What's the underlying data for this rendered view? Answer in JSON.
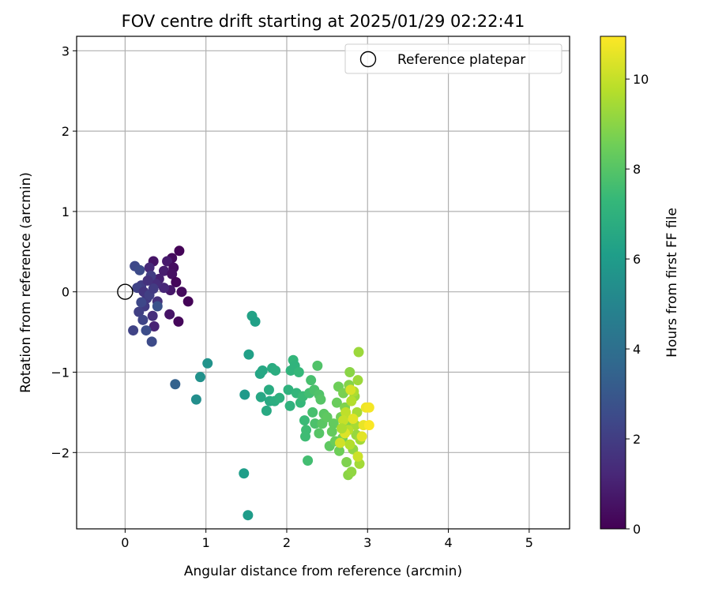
{
  "chart_data": {
    "type": "scatter",
    "title": "FOV centre drift starting at 2025/01/29 02:22:41",
    "xlabel": "Angular distance from reference (arcmin)",
    "ylabel": "Rotation from reference (arcmin)",
    "xlim": [
      -0.6,
      5.5
    ],
    "ylim": [
      -2.95,
      3.18
    ],
    "x_ticks": [
      0,
      1,
      2,
      3,
      4,
      5
    ],
    "y_ticks": [
      -2,
      -1,
      0,
      1,
      2,
      3
    ],
    "grid": true,
    "legend": {
      "placement": "top-right",
      "entries": [
        "Reference platepar"
      ]
    },
    "reference_point": {
      "x": 0,
      "y": 0,
      "label": "Reference platepar"
    },
    "colorbar": {
      "label": "Hours from first FF file",
      "range": [
        0,
        10.95
      ],
      "ticks": [
        0,
        2,
        4,
        6,
        8,
        10
      ],
      "colormap": "viridis",
      "colormap_stops": [
        "#440154",
        "#482878",
        "#3e4989",
        "#31688e",
        "#26828e",
        "#1f9e89",
        "#35b779",
        "#6ece58",
        "#b5de2b",
        "#fde725"
      ]
    },
    "points": [
      {
        "x": 0.67,
        "y": 0.51,
        "h": 0.1
      },
      {
        "x": 0.58,
        "y": 0.42,
        "h": 0.3
      },
      {
        "x": 0.35,
        "y": 0.38,
        "h": 0.6
      },
      {
        "x": 0.52,
        "y": 0.38,
        "h": 0.8
      },
      {
        "x": 0.6,
        "y": 0.3,
        "h": 0.4
      },
      {
        "x": 0.48,
        "y": 0.26,
        "h": 0.9
      },
      {
        "x": 0.58,
        "y": 0.22,
        "h": 0.5
      },
      {
        "x": 0.42,
        "y": 0.16,
        "h": 1.0
      },
      {
        "x": 0.63,
        "y": 0.12,
        "h": 0.2
      },
      {
        "x": 0.56,
        "y": 0.02,
        "h": 0.7
      },
      {
        "x": 0.7,
        "y": 0.0,
        "h": 0.3
      },
      {
        "x": 0.78,
        "y": -0.12,
        "h": 0.1
      },
      {
        "x": 0.48,
        "y": 0.05,
        "h": 1.2
      },
      {
        "x": 0.38,
        "y": 0.1,
        "h": 1.4
      },
      {
        "x": 0.3,
        "y": 0.3,
        "h": 1.3
      },
      {
        "x": 0.55,
        "y": -0.28,
        "h": 0.6
      },
      {
        "x": 0.66,
        "y": -0.37,
        "h": 0.2
      },
      {
        "x": 0.36,
        "y": -0.43,
        "h": 1.1
      },
      {
        "x": 0.34,
        "y": -0.3,
        "h": 1.5
      },
      {
        "x": 0.4,
        "y": -0.12,
        "h": 1.6
      },
      {
        "x": 0.27,
        "y": -0.08,
        "h": 1.8
      },
      {
        "x": 0.2,
        "y": 0.08,
        "h": 2.0
      },
      {
        "x": 0.15,
        "y": 0.05,
        "h": 2.2
      },
      {
        "x": 0.24,
        "y": -0.18,
        "h": 1.9
      },
      {
        "x": 0.17,
        "y": -0.25,
        "h": 2.1
      },
      {
        "x": 0.22,
        "y": -0.35,
        "h": 2.3
      },
      {
        "x": 0.12,
        "y": 0.32,
        "h": 2.4
      },
      {
        "x": 0.18,
        "y": 0.27,
        "h": 2.5
      },
      {
        "x": 0.32,
        "y": 0.2,
        "h": 2.0
      },
      {
        "x": 0.1,
        "y": -0.48,
        "h": 2.2
      },
      {
        "x": 0.26,
        "y": -0.48,
        "h": 2.6
      },
      {
        "x": 0.33,
        "y": -0.62,
        "h": 2.5
      },
      {
        "x": 0.4,
        "y": -0.18,
        "h": 2.8
      },
      {
        "x": 0.23,
        "y": 0.0,
        "h": 1.7
      },
      {
        "x": 0.3,
        "y": -0.04,
        "h": 2.1
      },
      {
        "x": 0.35,
        "y": 0.04,
        "h": 1.9
      },
      {
        "x": 0.2,
        "y": -0.13,
        "h": 2.4
      },
      {
        "x": 0.28,
        "y": 0.14,
        "h": 1.6
      },
      {
        "x": 0.62,
        "y": -1.15,
        "h": 3.4
      },
      {
        "x": 0.88,
        "y": -1.34,
        "h": 5.4
      },
      {
        "x": 0.93,
        "y": -1.06,
        "h": 5.5
      },
      {
        "x": 1.02,
        "y": -0.89,
        "h": 5.6
      },
      {
        "x": 1.48,
        "y": -1.28,
        "h": 5.9
      },
      {
        "x": 1.47,
        "y": -2.26,
        "h": 6.1
      },
      {
        "x": 1.52,
        "y": -2.78,
        "h": 6.0
      },
      {
        "x": 1.53,
        "y": -0.78,
        "h": 6.2
      },
      {
        "x": 1.57,
        "y": -0.3,
        "h": 6.3
      },
      {
        "x": 1.61,
        "y": -0.37,
        "h": 6.2
      },
      {
        "x": 1.67,
        "y": -1.02,
        "h": 6.4
      },
      {
        "x": 1.7,
        "y": -0.98,
        "h": 6.5
      },
      {
        "x": 1.68,
        "y": -1.31,
        "h": 6.5
      },
      {
        "x": 1.75,
        "y": -1.48,
        "h": 6.6
      },
      {
        "x": 1.78,
        "y": -1.22,
        "h": 6.7
      },
      {
        "x": 1.79,
        "y": -1.36,
        "h": 6.6
      },
      {
        "x": 1.82,
        "y": -0.95,
        "h": 6.7
      },
      {
        "x": 1.86,
        "y": -0.98,
        "h": 6.8
      },
      {
        "x": 1.85,
        "y": -1.36,
        "h": 6.8
      },
      {
        "x": 1.91,
        "y": -1.32,
        "h": 6.9
      },
      {
        "x": 2.02,
        "y": -1.22,
        "h": 7.0
      },
      {
        "x": 2.04,
        "y": -1.42,
        "h": 7.0
      },
      {
        "x": 2.05,
        "y": -0.98,
        "h": 7.1
      },
      {
        "x": 2.08,
        "y": -0.85,
        "h": 7.2
      },
      {
        "x": 2.1,
        "y": -0.92,
        "h": 7.1
      },
      {
        "x": 2.12,
        "y": -1.26,
        "h": 7.2
      },
      {
        "x": 2.15,
        "y": -1.0,
        "h": 7.3
      },
      {
        "x": 2.17,
        "y": -1.38,
        "h": 7.3
      },
      {
        "x": 2.2,
        "y": -1.3,
        "h": 7.4
      },
      {
        "x": 2.22,
        "y": -1.6,
        "h": 7.4
      },
      {
        "x": 2.24,
        "y": -1.72,
        "h": 7.5
      },
      {
        "x": 2.23,
        "y": -1.8,
        "h": 7.5
      },
      {
        "x": 2.26,
        "y": -2.1,
        "h": 7.6
      },
      {
        "x": 2.28,
        "y": -1.26,
        "h": 7.6
      },
      {
        "x": 2.3,
        "y": -1.1,
        "h": 7.7
      },
      {
        "x": 2.32,
        "y": -1.5,
        "h": 7.7
      },
      {
        "x": 2.34,
        "y": -1.22,
        "h": 7.8
      },
      {
        "x": 2.35,
        "y": -1.64,
        "h": 7.8
      },
      {
        "x": 2.38,
        "y": -0.92,
        "h": 7.9
      },
      {
        "x": 2.4,
        "y": -1.28,
        "h": 7.9
      },
      {
        "x": 2.42,
        "y": -1.34,
        "h": 8.0
      },
      {
        "x": 2.4,
        "y": -1.76,
        "h": 8.0
      },
      {
        "x": 2.44,
        "y": -1.64,
        "h": 8.1
      },
      {
        "x": 2.46,
        "y": -1.52,
        "h": 8.1
      },
      {
        "x": 2.5,
        "y": -1.56,
        "h": 8.2
      },
      {
        "x": 2.53,
        "y": -1.92,
        "h": 8.2
      },
      {
        "x": 2.56,
        "y": -1.74,
        "h": 8.3
      },
      {
        "x": 2.58,
        "y": -1.64,
        "h": 8.3
      },
      {
        "x": 2.6,
        "y": -1.86,
        "h": 8.4
      },
      {
        "x": 2.62,
        "y": -1.38,
        "h": 8.4
      },
      {
        "x": 2.64,
        "y": -1.18,
        "h": 8.5
      },
      {
        "x": 2.65,
        "y": -1.98,
        "h": 8.5
      },
      {
        "x": 2.67,
        "y": -1.56,
        "h": 8.6
      },
      {
        "x": 2.69,
        "y": -1.82,
        "h": 8.6
      },
      {
        "x": 2.7,
        "y": -1.26,
        "h": 8.7
      },
      {
        "x": 2.72,
        "y": -1.44,
        "h": 8.8
      },
      {
        "x": 2.74,
        "y": -2.12,
        "h": 8.8
      },
      {
        "x": 2.75,
        "y": -1.62,
        "h": 8.9
      },
      {
        "x": 2.77,
        "y": -1.16,
        "h": 8.9
      },
      {
        "x": 2.78,
        "y": -1.0,
        "h": 9.0
      },
      {
        "x": 2.76,
        "y": -2.28,
        "h": 9.0
      },
      {
        "x": 2.8,
        "y": -2.24,
        "h": 9.1
      },
      {
        "x": 2.82,
        "y": -1.96,
        "h": 9.1
      },
      {
        "x": 2.84,
        "y": -1.3,
        "h": 9.2
      },
      {
        "x": 2.86,
        "y": -1.78,
        "h": 9.2
      },
      {
        "x": 2.88,
        "y": -1.1,
        "h": 9.3
      },
      {
        "x": 2.89,
        "y": -0.75,
        "h": 9.3
      },
      {
        "x": 2.9,
        "y": -2.14,
        "h": 9.4
      },
      {
        "x": 2.91,
        "y": -1.84,
        "h": 9.4
      },
      {
        "x": 2.87,
        "y": -1.5,
        "h": 9.5
      },
      {
        "x": 2.85,
        "y": -1.66,
        "h": 9.5
      },
      {
        "x": 2.83,
        "y": -1.24,
        "h": 9.6
      },
      {
        "x": 2.8,
        "y": -1.36,
        "h": 9.7
      },
      {
        "x": 2.78,
        "y": -1.9,
        "h": 9.7
      },
      {
        "x": 2.76,
        "y": -1.72,
        "h": 9.8
      },
      {
        "x": 2.73,
        "y": -1.5,
        "h": 9.9
      },
      {
        "x": 2.7,
        "y": -1.6,
        "h": 10.0
      },
      {
        "x": 2.88,
        "y": -2.05,
        "h": 10.1
      },
      {
        "x": 2.66,
        "y": -1.88,
        "h": 10.2
      },
      {
        "x": 2.79,
        "y": -1.22,
        "h": 10.3
      },
      {
        "x": 2.72,
        "y": -1.76,
        "h": 10.4
      },
      {
        "x": 2.82,
        "y": -1.58,
        "h": 10.5
      },
      {
        "x": 2.95,
        "y": -1.66,
        "h": 10.6
      },
      {
        "x": 2.98,
        "y": -1.44,
        "h": 10.7
      },
      {
        "x": 3.02,
        "y": -1.44,
        "h": 10.8
      },
      {
        "x": 3.02,
        "y": -1.66,
        "h": 10.9
      },
      {
        "x": 2.93,
        "y": -1.8,
        "h": 10.5
      },
      {
        "x": 2.68,
        "y": -1.7,
        "h": 9.6
      }
    ]
  }
}
